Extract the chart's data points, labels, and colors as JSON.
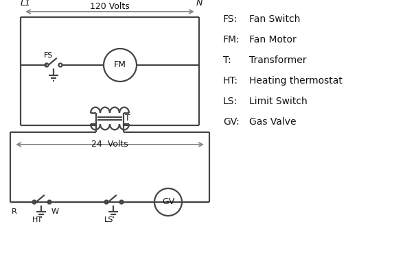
{
  "bg_color": "#ffffff",
  "line_color": "#444444",
  "arrow_color": "#888888",
  "text_color": "#111111",
  "legend_items": [
    [
      "FS:",
      "Fan Switch"
    ],
    [
      "FM:",
      "Fan Motor"
    ],
    [
      "T:",
      "Transformer"
    ],
    [
      "HT:",
      "Heating thermostat"
    ],
    [
      "LS:",
      "Limit Switch"
    ],
    [
      "GV:",
      "Gas Valve"
    ]
  ],
  "label_120V": "120 Volts",
  "label_24V": "24  Volts",
  "label_L1": "L1",
  "label_N": "N",
  "label_FS": "FS",
  "label_FM": "FM",
  "label_T": "T",
  "label_R": "R",
  "label_W": "W",
  "label_HT": "HT",
  "label_LS": "LS",
  "label_GV": "GV"
}
